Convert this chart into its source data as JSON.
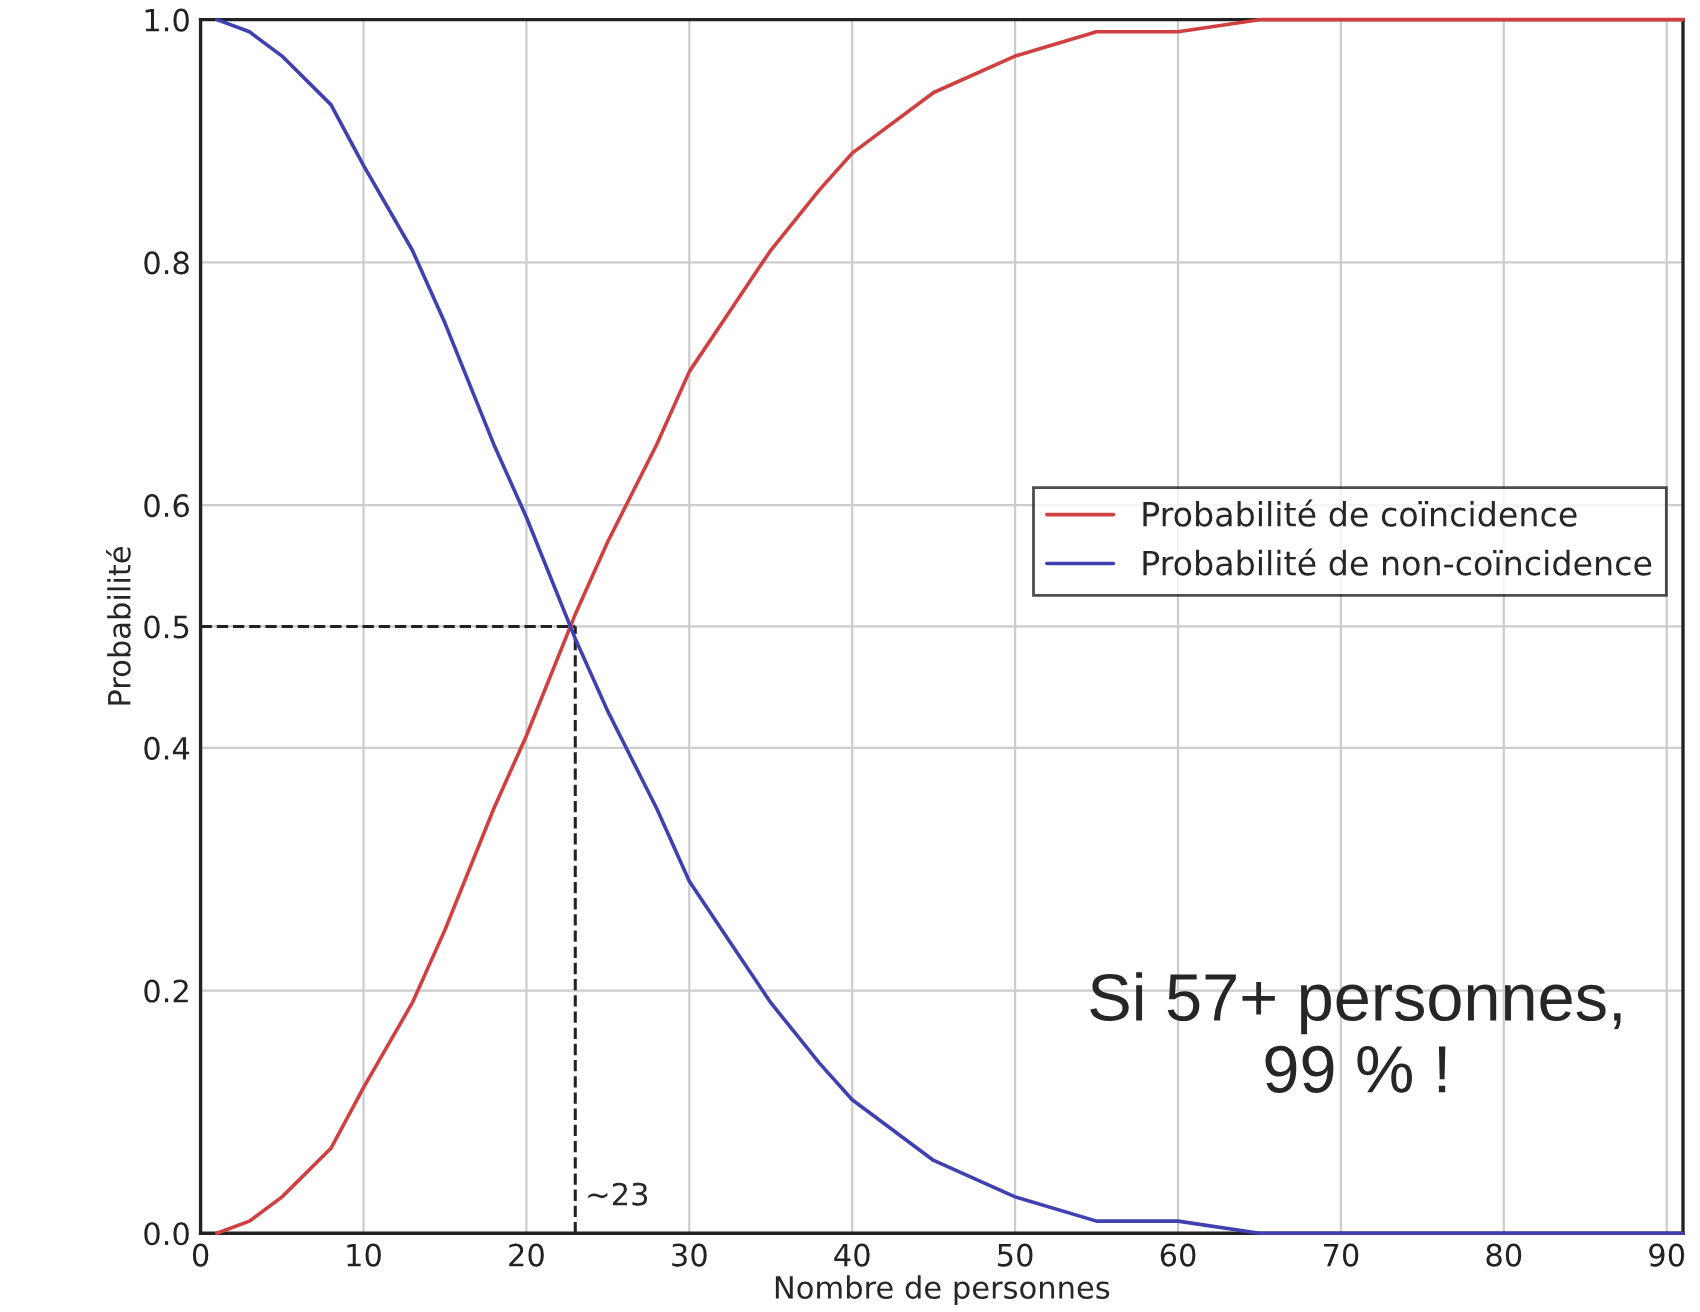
{
  "chart_data": {
    "type": "line",
    "xlabel": "Nombre de personnes",
    "ylabel": "Probabilité",
    "x": [
      1,
      3,
      5,
      8,
      10,
      13,
      15,
      18,
      20,
      23,
      25,
      28,
      30,
      33,
      35,
      38,
      40,
      45,
      50,
      55,
      60,
      65,
      70,
      80,
      91
    ],
    "series": [
      {
        "name": "Probabilité de coïncidence",
        "color": "#d04040",
        "values": [
          0.0,
          0.01,
          0.03,
          0.07,
          0.12,
          0.19,
          0.25,
          0.35,
          0.41,
          0.51,
          0.57,
          0.65,
          0.71,
          0.77,
          0.81,
          0.86,
          0.89,
          0.94,
          0.97,
          0.99,
          0.99,
          1.0,
          1.0,
          1.0,
          1.0
        ]
      },
      {
        "name": "Probabilité de non-coïncidence",
        "color": "#4040b0",
        "values": [
          1.0,
          0.99,
          0.97,
          0.93,
          0.88,
          0.81,
          0.75,
          0.65,
          0.59,
          0.49,
          0.43,
          0.35,
          0.29,
          0.23,
          0.19,
          0.14,
          0.11,
          0.06,
          0.03,
          0.01,
          0.01,
          0.0,
          0.0,
          0.0,
          0.0
        ]
      }
    ],
    "ref_lines": [
      {
        "axis": "x",
        "value": 23,
        "color": "#222222",
        "line_style": "dashed"
      },
      {
        "axis": "y",
        "value": 0.5,
        "color": "#222222",
        "line_style": "dashed"
      }
    ],
    "xlim": [
      0,
      91
    ],
    "xticks": [
      0,
      10,
      20,
      30,
      40,
      50,
      60,
      70,
      80,
      90
    ],
    "ylim": [
      0,
      1
    ],
    "yticks": [
      {
        "value": 0,
        "label": "0.0"
      },
      0.2,
      0.4,
      0.5,
      0.6,
      0.8,
      {
        "value": 1,
        "label": "1.0"
      }
    ],
    "grid": true,
    "legend": "right",
    "line_style": "solid",
    "marker": "none",
    "annotations": [
      {
        "text": "~23",
        "x": 23,
        "y": 0.03
      },
      "Si 57+ personnes,\n99 % !"
    ]
  }
}
